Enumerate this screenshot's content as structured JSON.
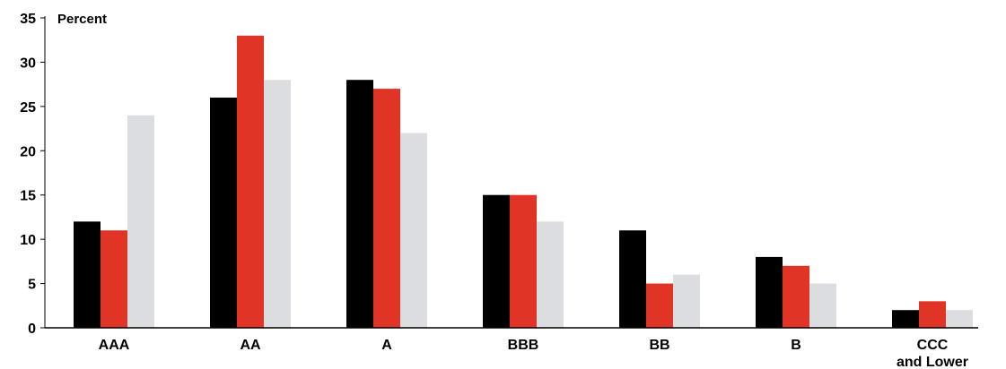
{
  "chart_data": {
    "type": "bar",
    "unit_label": "Percent",
    "ylim": [
      0,
      35
    ],
    "yticks": [
      0,
      5,
      10,
      15,
      20,
      25,
      30,
      35
    ],
    "grid": false,
    "legend": "none",
    "categories": [
      [
        "AAA"
      ],
      [
        "AA"
      ],
      [
        "A"
      ],
      [
        "BBB"
      ],
      [
        "BB"
      ],
      [
        "B"
      ],
      [
        "CCC",
        "and Lower"
      ]
    ],
    "series": [
      {
        "color": "#000000",
        "values": [
          12,
          26,
          28,
          15,
          11,
          8,
          2
        ]
      },
      {
        "color": "#e03427",
        "values": [
          11,
          33,
          27,
          15,
          5,
          7,
          3
        ]
      },
      {
        "color": "#dcdde0",
        "values": [
          24,
          28,
          22,
          12,
          6,
          5,
          2
        ]
      }
    ]
  }
}
